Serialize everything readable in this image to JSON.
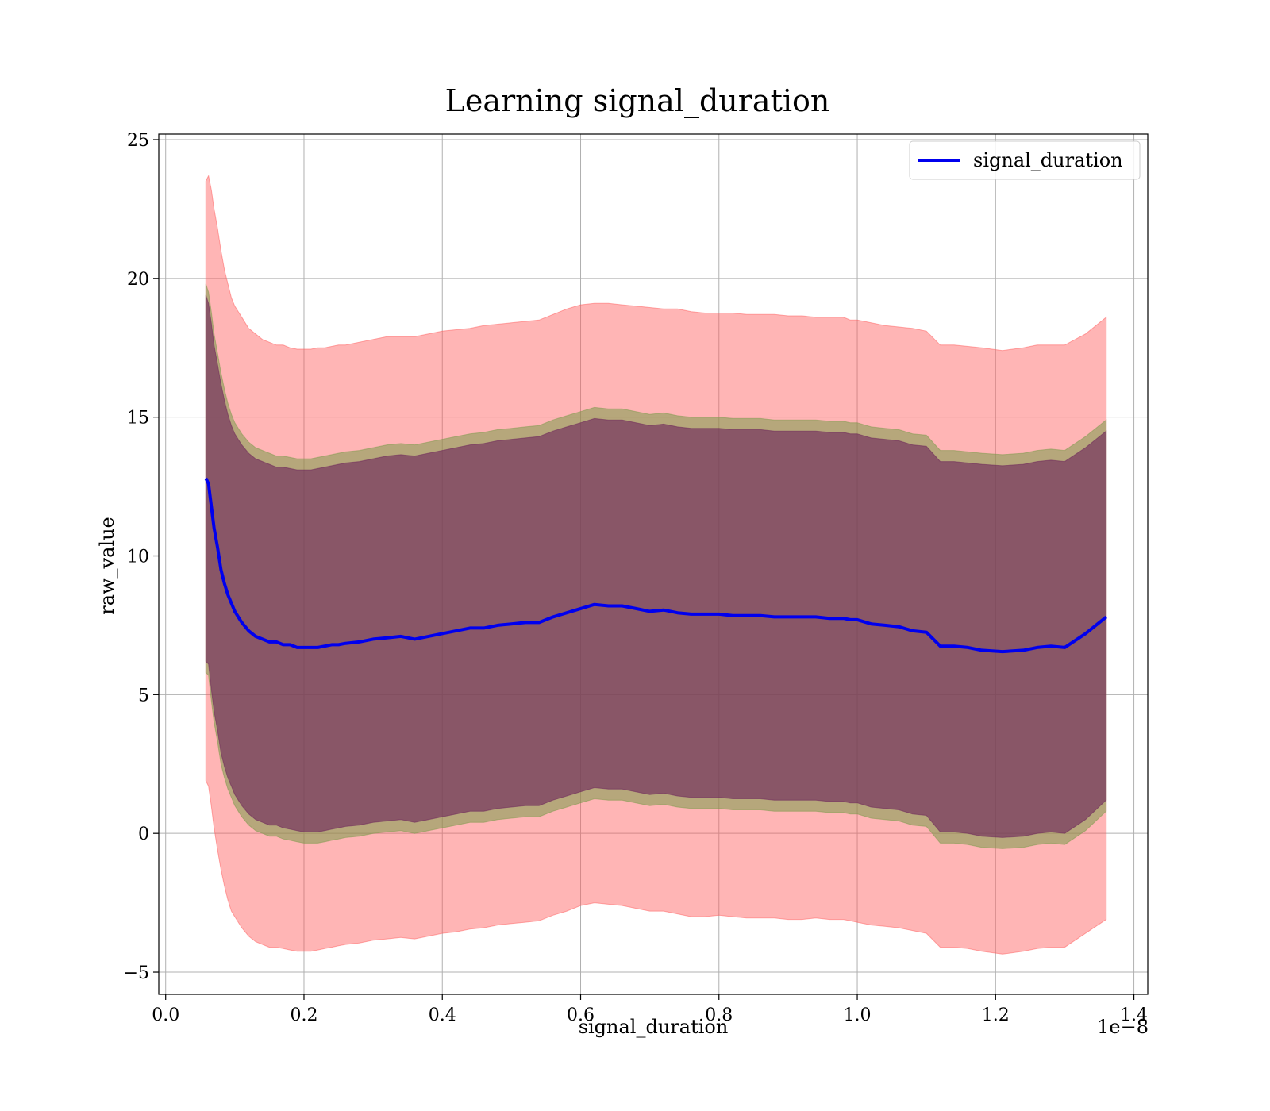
{
  "chart_data": {
    "type": "line",
    "title": "Learning signal_duration",
    "xlabel": "signal_duration",
    "ylabel": "raw_value",
    "x_offset_label": "1e−8",
    "xlim": [
      -0.01,
      1.42
    ],
    "ylim": [
      -5.8,
      25.2
    ],
    "x_ticks": [
      0.0,
      0.2,
      0.4,
      0.6,
      0.8,
      1.0,
      1.2,
      1.4
    ],
    "x_tick_labels": [
      "0.0",
      "0.2",
      "0.4",
      "0.6",
      "0.8",
      "1.0",
      "1.2",
      "1.4"
    ],
    "y_ticks": [
      -5,
      0,
      5,
      10,
      15,
      20,
      25
    ],
    "y_tick_labels": [
      "−5",
      "0",
      "5",
      "10",
      "15",
      "20",
      "25"
    ],
    "grid": true,
    "legend_position": "top-right",
    "x": [
      0.058,
      0.062,
      0.066,
      0.07,
      0.075,
      0.08,
      0.085,
      0.09,
      0.095,
      0.1,
      0.11,
      0.12,
      0.13,
      0.14,
      0.15,
      0.16,
      0.17,
      0.18,
      0.19,
      0.2,
      0.21,
      0.22,
      0.23,
      0.24,
      0.25,
      0.26,
      0.28,
      0.3,
      0.32,
      0.34,
      0.36,
      0.38,
      0.4,
      0.42,
      0.44,
      0.46,
      0.48,
      0.5,
      0.52,
      0.54,
      0.56,
      0.58,
      0.6,
      0.62,
      0.64,
      0.66,
      0.68,
      0.7,
      0.72,
      0.74,
      0.76,
      0.78,
      0.8,
      0.82,
      0.84,
      0.86,
      0.88,
      0.9,
      0.92,
      0.94,
      0.96,
      0.98,
      0.99,
      1.0,
      1.02,
      1.04,
      1.06,
      1.08,
      1.1,
      1.12,
      1.14,
      1.16,
      1.18,
      1.21,
      1.24,
      1.26,
      1.28,
      1.3,
      1.33,
      1.36
    ],
    "series": [
      {
        "name": "signal_duration",
        "color": "#0000ee",
        "values": [
          12.8,
          12.6,
          11.8,
          11.0,
          10.3,
          9.5,
          9.0,
          8.6,
          8.3,
          8.0,
          7.6,
          7.3,
          7.1,
          7.0,
          6.9,
          6.9,
          6.8,
          6.8,
          6.7,
          6.7,
          6.7,
          6.7,
          6.75,
          6.8,
          6.8,
          6.85,
          6.9,
          7.0,
          7.05,
          7.1,
          7.0,
          7.1,
          7.2,
          7.3,
          7.4,
          7.4,
          7.5,
          7.55,
          7.6,
          7.6,
          7.8,
          7.95,
          8.1,
          8.25,
          8.2,
          8.2,
          8.1,
          8.0,
          8.05,
          7.95,
          7.9,
          7.9,
          7.9,
          7.85,
          7.85,
          7.85,
          7.8,
          7.8,
          7.8,
          7.8,
          7.75,
          7.75,
          7.7,
          7.7,
          7.55,
          7.5,
          7.45,
          7.3,
          7.25,
          6.75,
          6.75,
          6.7,
          6.6,
          6.55,
          6.6,
          6.7,
          6.75,
          6.7,
          7.2,
          7.8
        ]
      }
    ],
    "bands": [
      {
        "fill": "#ff5a5a",
        "opacity": 0.45,
        "upper": [
          23.5,
          23.7,
          23.2,
          22.5,
          21.8,
          21.0,
          20.3,
          19.8,
          19.3,
          19.0,
          18.6,
          18.2,
          18.0,
          17.8,
          17.7,
          17.6,
          17.6,
          17.5,
          17.45,
          17.45,
          17.45,
          17.5,
          17.5,
          17.55,
          17.6,
          17.6,
          17.7,
          17.8,
          17.9,
          17.9,
          17.9,
          18.0,
          18.1,
          18.15,
          18.2,
          18.3,
          18.35,
          18.4,
          18.45,
          18.5,
          18.7,
          18.9,
          19.05,
          19.1,
          19.1,
          19.05,
          19.0,
          18.95,
          18.9,
          18.9,
          18.8,
          18.75,
          18.75,
          18.75,
          18.7,
          18.7,
          18.7,
          18.65,
          18.65,
          18.6,
          18.6,
          18.6,
          18.5,
          18.5,
          18.4,
          18.3,
          18.25,
          18.2,
          18.1,
          17.6,
          17.6,
          17.55,
          17.5,
          17.4,
          17.5,
          17.6,
          17.6,
          17.6,
          18.0,
          18.6
        ],
        "lower": [
          1.9,
          1.7,
          1.0,
          0.2,
          -0.6,
          -1.3,
          -1.9,
          -2.4,
          -2.8,
          -3.0,
          -3.4,
          -3.7,
          -3.9,
          -4.0,
          -4.1,
          -4.1,
          -4.15,
          -4.2,
          -4.25,
          -4.25,
          -4.25,
          -4.2,
          -4.15,
          -4.1,
          -4.05,
          -4.0,
          -3.95,
          -3.85,
          -3.8,
          -3.75,
          -3.8,
          -3.7,
          -3.6,
          -3.55,
          -3.45,
          -3.4,
          -3.3,
          -3.25,
          -3.2,
          -3.15,
          -2.95,
          -2.8,
          -2.6,
          -2.5,
          -2.55,
          -2.6,
          -2.7,
          -2.8,
          -2.8,
          -2.9,
          -3.0,
          -3.0,
          -2.95,
          -3.0,
          -3.05,
          -3.05,
          -3.05,
          -3.1,
          -3.1,
          -3.05,
          -3.1,
          -3.1,
          -3.15,
          -3.2,
          -3.3,
          -3.35,
          -3.4,
          -3.5,
          -3.6,
          -4.1,
          -4.1,
          -4.15,
          -4.25,
          -4.35,
          -4.25,
          -4.15,
          -4.1,
          -4.1,
          -3.6,
          -3.1
        ]
      },
      {
        "fill": "#7a9a4a",
        "opacity": 0.55,
        "upper": [
          19.8,
          19.5,
          18.8,
          18.0,
          17.3,
          16.6,
          16.0,
          15.5,
          15.1,
          14.8,
          14.4,
          14.1,
          13.9,
          13.8,
          13.7,
          13.6,
          13.6,
          13.55,
          13.5,
          13.5,
          13.5,
          13.55,
          13.6,
          13.65,
          13.7,
          13.75,
          13.8,
          13.9,
          14.0,
          14.05,
          14.0,
          14.1,
          14.2,
          14.3,
          14.4,
          14.45,
          14.55,
          14.6,
          14.65,
          14.7,
          14.9,
          15.05,
          15.2,
          15.35,
          15.3,
          15.3,
          15.2,
          15.1,
          15.15,
          15.05,
          15.0,
          15.0,
          15.0,
          14.95,
          14.95,
          14.95,
          14.9,
          14.9,
          14.9,
          14.9,
          14.85,
          14.85,
          14.8,
          14.8,
          14.65,
          14.6,
          14.55,
          14.4,
          14.35,
          13.8,
          13.8,
          13.75,
          13.7,
          13.65,
          13.7,
          13.8,
          13.85,
          13.8,
          14.3,
          14.9
        ],
        "lower": [
          5.8,
          5.7,
          4.8,
          4.0,
          3.3,
          2.5,
          2.0,
          1.6,
          1.3,
          1.0,
          0.6,
          0.3,
          0.1,
          0.0,
          -0.1,
          -0.1,
          -0.2,
          -0.25,
          -0.3,
          -0.35,
          -0.35,
          -0.35,
          -0.3,
          -0.25,
          -0.2,
          -0.15,
          -0.1,
          0.0,
          0.05,
          0.1,
          0.0,
          0.1,
          0.2,
          0.3,
          0.4,
          0.4,
          0.5,
          0.55,
          0.6,
          0.6,
          0.8,
          0.95,
          1.1,
          1.25,
          1.2,
          1.2,
          1.1,
          1.0,
          1.05,
          0.95,
          0.9,
          0.9,
          0.9,
          0.85,
          0.85,
          0.85,
          0.8,
          0.8,
          0.8,
          0.8,
          0.75,
          0.75,
          0.7,
          0.7,
          0.55,
          0.5,
          0.45,
          0.3,
          0.25,
          -0.35,
          -0.35,
          -0.4,
          -0.5,
          -0.55,
          -0.5,
          -0.4,
          -0.35,
          -0.4,
          0.1,
          0.8
        ]
      },
      {
        "fill": "#6a1f5a",
        "opacity": 0.6,
        "upper": [
          19.4,
          19.1,
          18.4,
          17.6,
          16.9,
          16.2,
          15.6,
          15.1,
          14.7,
          14.4,
          14.0,
          13.7,
          13.5,
          13.4,
          13.3,
          13.2,
          13.2,
          13.15,
          13.1,
          13.1,
          13.1,
          13.15,
          13.2,
          13.25,
          13.3,
          13.35,
          13.4,
          13.5,
          13.6,
          13.65,
          13.6,
          13.7,
          13.8,
          13.9,
          14.0,
          14.05,
          14.15,
          14.2,
          14.25,
          14.3,
          14.5,
          14.65,
          14.8,
          14.95,
          14.9,
          14.9,
          14.8,
          14.7,
          14.75,
          14.65,
          14.6,
          14.6,
          14.6,
          14.55,
          14.55,
          14.55,
          14.5,
          14.5,
          14.5,
          14.5,
          14.45,
          14.45,
          14.4,
          14.4,
          14.25,
          14.2,
          14.15,
          14.0,
          13.95,
          13.4,
          13.4,
          13.35,
          13.3,
          13.25,
          13.3,
          13.4,
          13.45,
          13.4,
          13.9,
          14.5
        ],
        "lower": [
          6.2,
          6.1,
          5.2,
          4.4,
          3.7,
          2.9,
          2.4,
          2.0,
          1.7,
          1.4,
          1.0,
          0.7,
          0.5,
          0.4,
          0.3,
          0.3,
          0.2,
          0.15,
          0.1,
          0.05,
          0.05,
          0.05,
          0.1,
          0.15,
          0.2,
          0.25,
          0.3,
          0.4,
          0.45,
          0.5,
          0.4,
          0.5,
          0.6,
          0.7,
          0.8,
          0.8,
          0.9,
          0.95,
          1.0,
          1.0,
          1.2,
          1.35,
          1.5,
          1.65,
          1.6,
          1.6,
          1.5,
          1.4,
          1.45,
          1.35,
          1.3,
          1.3,
          1.3,
          1.25,
          1.25,
          1.25,
          1.2,
          1.2,
          1.2,
          1.2,
          1.15,
          1.15,
          1.1,
          1.1,
          0.95,
          0.9,
          0.85,
          0.7,
          0.65,
          0.05,
          0.05,
          0.0,
          -0.1,
          -0.15,
          -0.1,
          0.0,
          0.05,
          0.0,
          0.5,
          1.2
        ]
      }
    ]
  }
}
